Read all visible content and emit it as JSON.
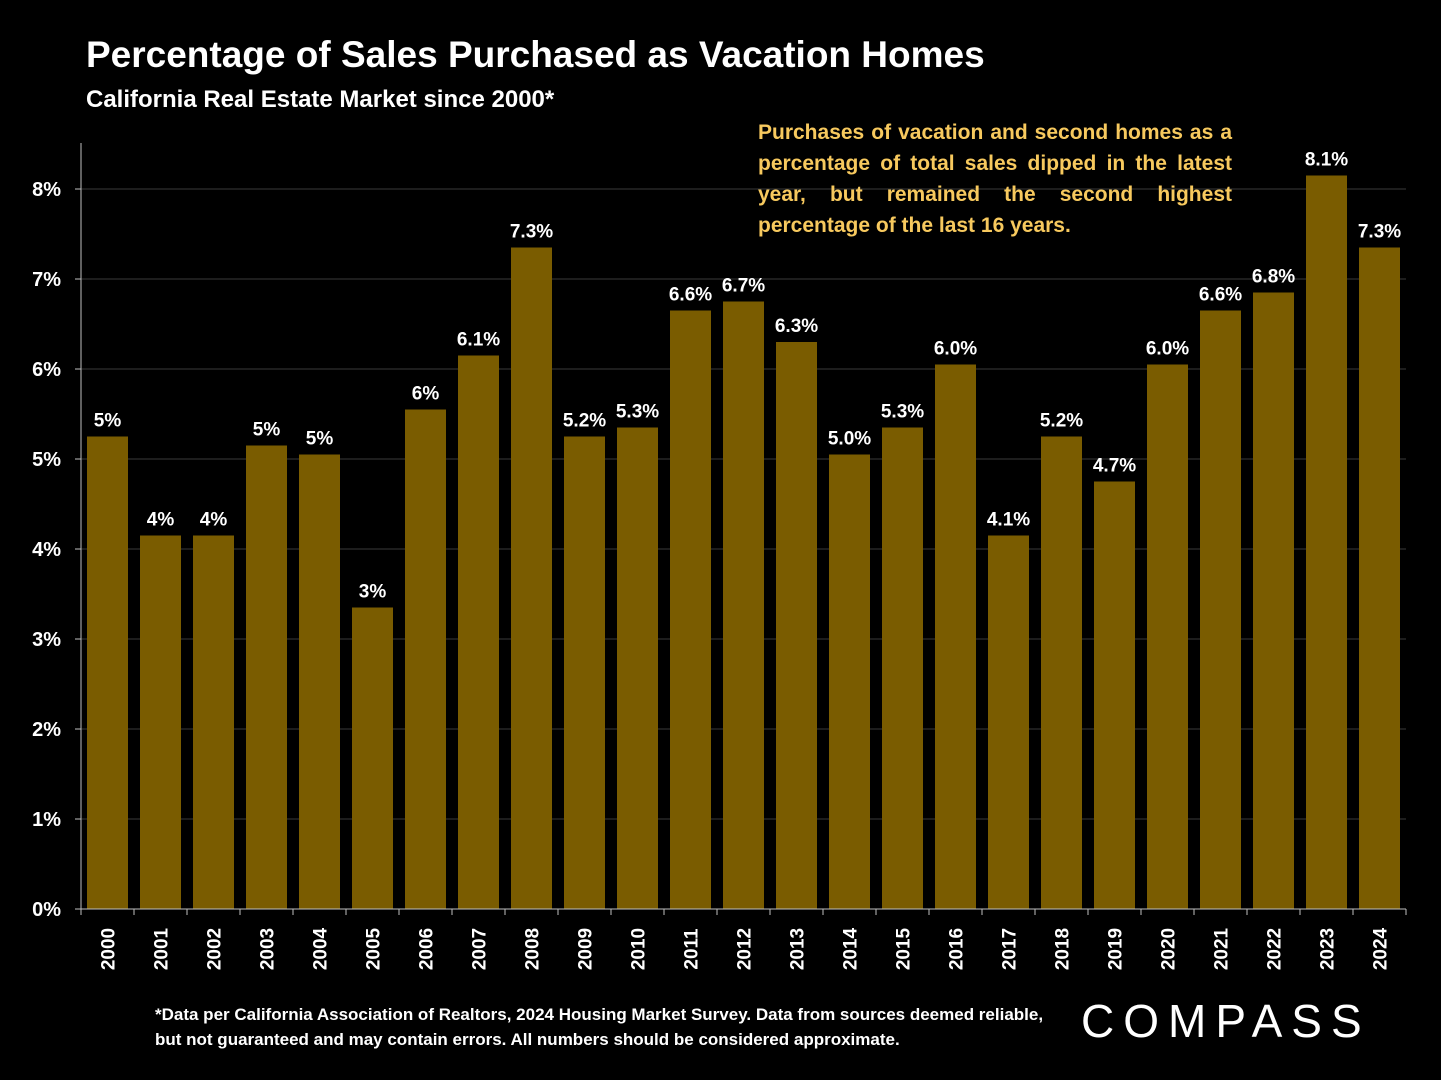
{
  "header": {
    "title": "Percentage of Sales Purchased as Vacation Homes",
    "subtitle": "California Real Estate Market since 2000*"
  },
  "annotation": "Purchases of vacation and second homes as a percentage of total sales dipped in the latest year, but remained the second highest percentage of the last 16 years.",
  "footnote": "*Data per California Association of Realtors, 2024 Housing Market Survey. Data from sources deemed reliable, but not guaranteed and may contain errors. All numbers should be considered approximate.",
  "logo": "COMPASS",
  "colors": {
    "bar": "#7a5c00",
    "annotation": "#f7c95e",
    "background": "#000000",
    "text": "#ffffff",
    "grid": "#3a3a3a"
  },
  "chart_data": {
    "type": "bar",
    "categories": [
      "2000",
      "2001",
      "2002",
      "2003",
      "2004",
      "2005",
      "2006",
      "2007",
      "2008",
      "2009",
      "2010",
      "2011",
      "2012",
      "2013",
      "2014",
      "2015",
      "2016",
      "2017",
      "2018",
      "2019",
      "2020",
      "2021",
      "2022",
      "2023",
      "2024"
    ],
    "values": [
      5.25,
      4.15,
      4.15,
      5.15,
      5.05,
      3.35,
      5.55,
      6.15,
      7.35,
      5.25,
      5.35,
      6.65,
      6.75,
      6.3,
      5.05,
      5.35,
      6.05,
      4.15,
      5.25,
      4.75,
      6.05,
      6.65,
      6.85,
      8.15,
      7.35
    ],
    "data_labels": [
      "5%",
      "4%",
      "4%",
      "5%",
      "5%",
      "3%",
      "6%",
      "6.1%",
      "7.3%",
      "5.2%",
      "5.3%",
      "6.6%",
      "6.7%",
      "6.3%",
      "5.0%",
      "5.3%",
      "6.0%",
      "4.1%",
      "5.2%",
      "4.7%",
      "6.0%",
      "6.6%",
      "6.8%",
      "8.1%",
      "7.3%"
    ],
    "y_ticks": [
      "0%",
      "1%",
      "2%",
      "3%",
      "4%",
      "5%",
      "6%",
      "7%",
      "8%"
    ],
    "ylim": [
      0,
      8.5
    ],
    "grid": true,
    "title": "Percentage of Sales Purchased as Vacation Homes",
    "subtitle": "California Real Estate Market since 2000*",
    "xlabel": "",
    "ylabel": ""
  }
}
